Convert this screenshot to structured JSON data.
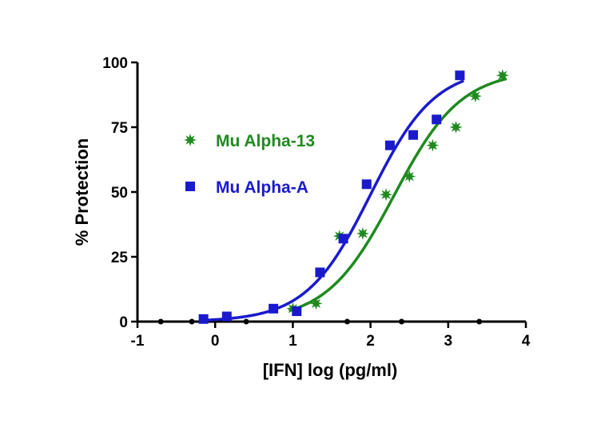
{
  "chart_data": {
    "type": "scatter",
    "title": "",
    "xlabel": "[IFN] log (pg/ml)",
    "ylabel": "% Protection",
    "xlim": [
      -1,
      4
    ],
    "ylim": [
      0,
      100
    ],
    "x_ticks": [
      "-1",
      "0",
      "1",
      "2",
      "3",
      "4"
    ],
    "y_ticks": [
      "0",
      "25",
      "50",
      "75",
      "100"
    ],
    "x_minor_ticks": [
      -0.7,
      -0.3,
      0.4,
      1.7,
      2.4,
      3.4
    ],
    "grid": false,
    "legend_position": "upper-left",
    "series": [
      {
        "name": "Mu Alpha-13",
        "color": "#1f8a1f",
        "marker": "star",
        "points": [
          [
            1.0,
            5
          ],
          [
            1.3,
            7
          ],
          [
            1.6,
            33
          ],
          [
            1.9,
            34
          ],
          [
            2.2,
            49
          ],
          [
            2.5,
            56
          ],
          [
            2.8,
            68
          ],
          [
            3.1,
            75
          ],
          [
            3.35,
            87
          ],
          [
            3.7,
            95
          ]
        ],
        "fit": {
          "bottom": 0,
          "top": 97,
          "log_ec50": 2.3,
          "hill": 1.0
        }
      },
      {
        "name": "Mu Alpha-A",
        "color": "#1a1acc",
        "marker": "square",
        "points": [
          [
            -0.15,
            1
          ],
          [
            0.15,
            2
          ],
          [
            0.75,
            5
          ],
          [
            1.05,
            4
          ],
          [
            1.35,
            19
          ],
          [
            1.65,
            32
          ],
          [
            1.95,
            53
          ],
          [
            2.25,
            68
          ],
          [
            2.55,
            72
          ],
          [
            2.85,
            78
          ],
          [
            3.15,
            95
          ]
        ],
        "fit": {
          "bottom": 0,
          "top": 98,
          "log_ec50": 2.0,
          "hill": 1.05
        }
      }
    ]
  }
}
